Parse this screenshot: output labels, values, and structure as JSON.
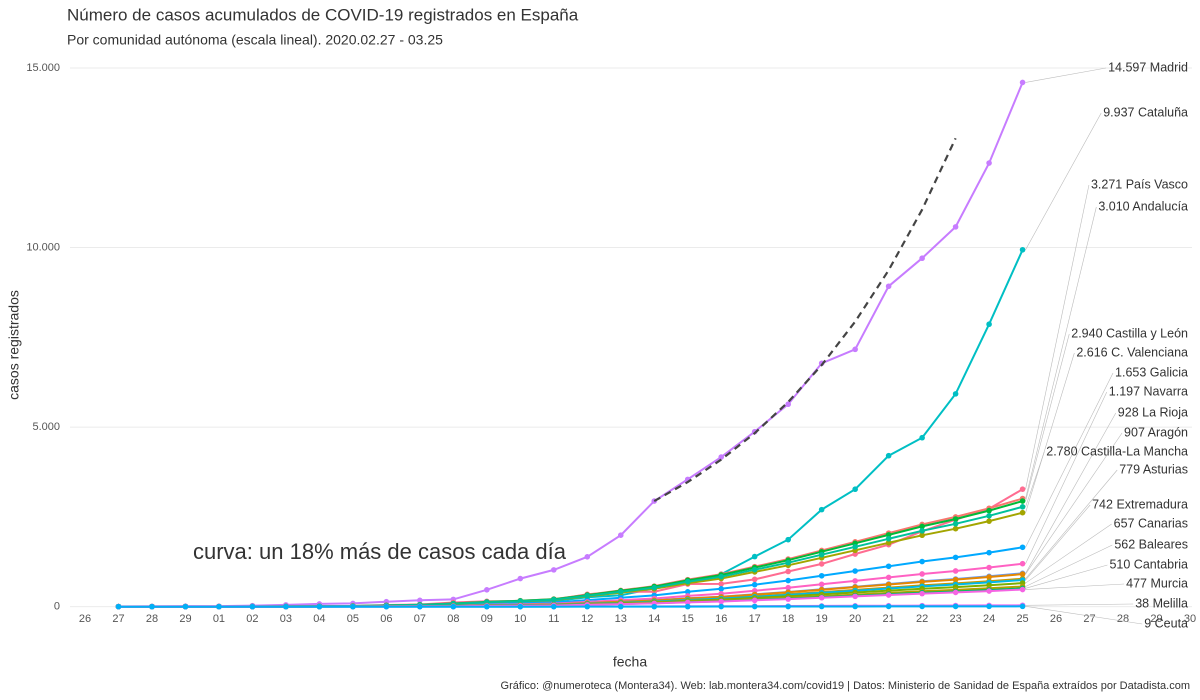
{
  "chart_data": {
    "type": "line",
    "title": "Número de casos acumulados de COVID-19 registrados en España",
    "subtitle": "Por comunidad autónoma (escala lineal). 2020.02.27 - 03.25",
    "x_label": "fecha",
    "y_label": "casos registrados",
    "annotation": "curva: un 18% más de casos cada día",
    "caption": "Gráfico: @numeroteca (Montera34). Web: lab.montera34.com/covid19 | Datos: Ministerio de Sanidad de España extraídos por Datadista.com",
    "categories": [
      "26",
      "27",
      "28",
      "29",
      "01",
      "02",
      "03",
      "04",
      "05",
      "06",
      "07",
      "08",
      "09",
      "10",
      "11",
      "12",
      "13",
      "14",
      "15",
      "16",
      "17",
      "18",
      "19",
      "20",
      "21",
      "22",
      "23",
      "24",
      "25",
      "26",
      "27",
      "28",
      "29",
      "30"
    ],
    "ylim": [
      -650,
      15500
    ],
    "yticks": [
      0,
      {
        "value": 5000,
        "label": "5.000"
      },
      {
        "value": 10000,
        "label": "10.000"
      },
      {
        "value": 15000,
        "label": "15.000"
      }
    ],
    "grid": true,
    "reference_curve": {
      "color": "#444444",
      "values": [
        null,
        null,
        null,
        null,
        null,
        null,
        null,
        null,
        null,
        null,
        null,
        null,
        null,
        null,
        null,
        null,
        null,
        2940,
        3469,
        4094,
        4831,
        5700,
        6726,
        7937,
        9366,
        11052,
        13041,
        null,
        null,
        null,
        null,
        null,
        null,
        null
      ]
    },
    "series": [
      {
        "name": "Madrid",
        "end_label": "14.597 Madrid",
        "color": "#c77cff",
        "values": [
          null,
          6,
          10,
          15,
          15,
          29,
          49,
          76,
          90,
          137,
          177,
          202,
          469,
          782,
          1024,
          1388,
          1990,
          2940,
          3544,
          4165,
          4871,
          5637,
          6777,
          7165,
          8921,
          9702,
          10575,
          12352,
          14597,
          null,
          null,
          null,
          null,
          null
        ]
      },
      {
        "name": "Cataluña",
        "end_label": "9.937 Cataluña",
        "color": "#00bfc4",
        "values": [
          null,
          1,
          1,
          2,
          3,
          6,
          8,
          12,
          15,
          15,
          24,
          49,
          75,
          124,
          156,
          260,
          316,
          509,
          715,
          903,
          1394,
          1866,
          2702,
          3270,
          4203,
          4704,
          5925,
          7864,
          9937,
          null,
          null,
          null,
          null,
          null
        ]
      },
      {
        "name": "País Vasco",
        "end_label": "3.271 País Vasco",
        "color": "#ff6c91",
        "values": [
          null,
          0,
          0,
          0,
          0,
          3,
          8,
          13,
          19,
          45,
          60,
          117,
          148,
          149,
          195,
          343,
          417,
          417,
          630,
          633,
          760,
          980,
          1190,
          1465,
          1725,
          2097,
          2421,
          2728,
          3271,
          null,
          null,
          null,
          null,
          null
        ]
      },
      {
        "name": "Andalucía",
        "end_label": "3.010 Andalucía",
        "color": "#f8766d",
        "values": [
          null,
          0,
          0,
          0,
          0,
          3,
          6,
          12,
          18,
          36,
          54,
          90,
          135,
          166,
          211,
          331,
          452,
          572,
          753,
          903,
          1114,
          1324,
          1565,
          1806,
          2047,
          2288,
          2498,
          2739,
          3010,
          null,
          null,
          null,
          null,
          null
        ]
      },
      {
        "name": "Castilla y León",
        "end_label": "2.940 Castilla y León",
        "color": "#00ba38",
        "values": [
          null,
          0,
          0,
          0,
          0,
          3,
          6,
          12,
          18,
          35,
          53,
          88,
          132,
          162,
          206,
          323,
          441,
          559,
          735,
          882,
          1088,
          1294,
          1529,
          1764,
          1999,
          2234,
          2440,
          2675,
          2940,
          null,
          null,
          null,
          null,
          null
        ]
      },
      {
        "name": "C. Valenciana",
        "end_label": "2.616 C. Valenciana",
        "color": "#a3a500",
        "values": [
          null,
          0,
          0,
          0,
          0,
          3,
          5,
          10,
          16,
          31,
          47,
          78,
          118,
          144,
          183,
          288,
          392,
          497,
          654,
          785,
          968,
          1151,
          1360,
          1570,
          1779,
          1988,
          2171,
          2381,
          2616,
          null,
          null,
          null,
          null,
          null
        ]
      },
      {
        "name": "Galicia",
        "end_label": "1.653 Galicia",
        "color": "#00a9ff",
        "values": [
          null,
          0,
          0,
          0,
          0,
          2,
          3,
          7,
          10,
          20,
          30,
          50,
          74,
          91,
          116,
          182,
          248,
          314,
          413,
          496,
          612,
          727,
          860,
          992,
          1124,
          1256,
          1372,
          1504,
          1653,
          null,
          null,
          null,
          null,
          null
        ]
      },
      {
        "name": "Navarra",
        "end_label": "1.197 Navarra",
        "color": "#ff61c3",
        "values": [
          null,
          0,
          0,
          0,
          0,
          1,
          2,
          5,
          7,
          14,
          22,
          36,
          54,
          66,
          84,
          132,
          180,
          227,
          299,
          359,
          443,
          527,
          622,
          718,
          814,
          910,
          994,
          1089,
          1197,
          null,
          null,
          null,
          null,
          null
        ]
      },
      {
        "name": "La Rioja",
        "end_label": "928 La Rioja",
        "color": "#619cff",
        "values": [
          null,
          0,
          0,
          0,
          0,
          1,
          2,
          4,
          6,
          11,
          17,
          28,
          42,
          51,
          65,
          102,
          139,
          176,
          232,
          278,
          343,
          408,
          483,
          557,
          631,
          705,
          770,
          844,
          928,
          null,
          null,
          null,
          null,
          null
        ]
      },
      {
        "name": "Aragón",
        "end_label": "907 Aragón",
        "color": "#e58700",
        "values": [
          null,
          0,
          0,
          0,
          0,
          1,
          2,
          4,
          5,
          11,
          16,
          27,
          41,
          50,
          63,
          100,
          136,
          172,
          227,
          272,
          336,
          399,
          472,
          544,
          617,
          689,
          753,
          825,
          907,
          null,
          null,
          null,
          null,
          null
        ]
      },
      {
        "name": "Castilla-La Mancha",
        "end_label": "2.780 Castilla-La Mancha",
        "color": "#00c19a",
        "values": [
          null,
          0,
          0,
          0,
          0,
          3,
          6,
          11,
          17,
          33,
          50,
          83,
          125,
          153,
          195,
          306,
          417,
          528,
          695,
          834,
          1029,
          1223,
          1446,
          1668,
          1890,
          2113,
          2307,
          2530,
          2780,
          null,
          null,
          null,
          null,
          null
        ]
      },
      {
        "name": "Asturias",
        "end_label": "779 Asturias",
        "color": "#c99800",
        "values": [
          null,
          0,
          0,
          0,
          0,
          1,
          2,
          3,
          5,
          9,
          14,
          23,
          35,
          43,
          55,
          86,
          117,
          148,
          195,
          234,
          288,
          343,
          405,
          467,
          530,
          592,
          647,
          709,
          779,
          null,
          null,
          null,
          null,
          null
        ]
      },
      {
        "name": "Extremadura",
        "end_label": "742 Extremadura",
        "color": "#00b8e7",
        "values": [
          null,
          0,
          0,
          0,
          0,
          1,
          1,
          3,
          4,
          9,
          13,
          22,
          33,
          41,
          52,
          82,
          111,
          141,
          186,
          223,
          275,
          326,
          386,
          445,
          505,
          564,
          616,
          675,
          742,
          null,
          null,
          null,
          null,
          null
        ]
      },
      {
        "name": "Canarias",
        "end_label": "657 Canarias",
        "color": "#7cae00",
        "values": [
          null,
          0,
          0,
          0,
          0,
          1,
          1,
          3,
          4,
          8,
          12,
          20,
          30,
          36,
          46,
          72,
          99,
          125,
          164,
          197,
          243,
          289,
          342,
          394,
          447,
          499,
          545,
          598,
          657,
          null,
          null,
          null,
          null,
          null
        ]
      },
      {
        "name": "Baleares",
        "end_label": "562 Baleares",
        "color": "#b79f00",
        "values": [
          null,
          0,
          0,
          0,
          0,
          1,
          1,
          2,
          3,
          7,
          10,
          17,
          25,
          31,
          39,
          62,
          84,
          107,
          141,
          169,
          208,
          247,
          292,
          337,
          382,
          427,
          466,
          511,
          562,
          null,
          null,
          null,
          null,
          null
        ]
      },
      {
        "name": "Cantabria",
        "end_label": "510 Cantabria",
        "color": "#00be67",
        "values": [
          null,
          0,
          0,
          0,
          0,
          1,
          1,
          2,
          3,
          6,
          9,
          15,
          23,
          28,
          36,
          56,
          77,
          97,
          128,
          153,
          189,
          224,
          265,
          306,
          347,
          388,
          423,
          464,
          510,
          null,
          null,
          null,
          null,
          null
        ]
      },
      {
        "name": "Murcia",
        "end_label": "477 Murcia",
        "color": "#f564e3",
        "values": [
          null,
          0,
          0,
          0,
          0,
          0,
          1,
          2,
          3,
          6,
          9,
          14,
          21,
          26,
          33,
          52,
          72,
          91,
          119,
          143,
          176,
          210,
          248,
          286,
          324,
          363,
          396,
          434,
          477,
          null,
          null,
          null,
          null,
          null
        ]
      },
      {
        "name": "Melilla",
        "end_label": "38 Melilla",
        "color": "#e76bf3",
        "values": [
          null,
          0,
          0,
          0,
          0,
          0,
          0,
          0,
          0,
          0,
          1,
          1,
          2,
          2,
          3,
          4,
          6,
          7,
          10,
          11,
          14,
          17,
          20,
          23,
          26,
          29,
          32,
          35,
          38,
          null,
          null,
          null,
          null,
          null
        ]
      },
      {
        "name": "Ceuta",
        "end_label": "9 Ceuta",
        "color": "#00b0f6",
        "values": [
          null,
          0,
          0,
          0,
          0,
          0,
          0,
          0,
          0,
          0,
          0,
          0,
          0,
          0,
          0,
          1,
          1,
          1,
          2,
          3,
          3,
          4,
          5,
          5,
          6,
          7,
          7,
          8,
          9,
          null,
          null,
          null,
          null,
          null
        ]
      }
    ]
  }
}
